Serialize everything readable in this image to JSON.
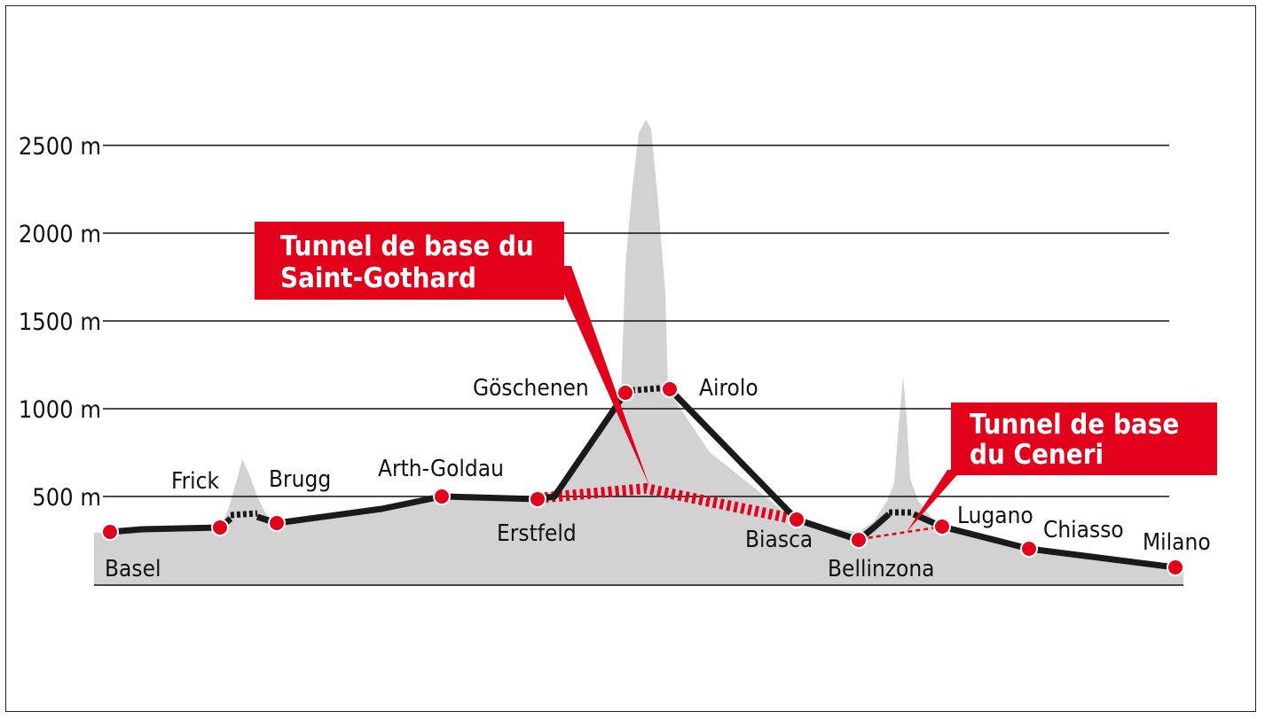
{
  "axis": {
    "unit": "m",
    "ticks": [
      {
        "value": 500,
        "label": "500 m"
      },
      {
        "value": 1000,
        "label": "1000 m"
      },
      {
        "value": 1500,
        "label": "1500 m"
      },
      {
        "value": 2000,
        "label": "2000 m"
      },
      {
        "value": 2500,
        "label": "2500 m"
      }
    ]
  },
  "stations": [
    {
      "name": "Basel",
      "altitude": 300
    },
    {
      "name": "Frick",
      "altitude": 330
    },
    {
      "name": "Brugg",
      "altitude": 340
    },
    {
      "name": "Arth-Goldau",
      "altitude": 500
    },
    {
      "name": "Erstfeld",
      "altitude": 480
    },
    {
      "name": "Göschenen",
      "altitude": 1090
    },
    {
      "name": "Airolo",
      "altitude": 1110
    },
    {
      "name": "Biasca",
      "altitude": 370
    },
    {
      "name": "Bellinzona",
      "altitude": 250
    },
    {
      "name": "Lugano",
      "altitude": 330
    },
    {
      "name": "Chiasso",
      "altitude": 200
    },
    {
      "name": "Milano",
      "altitude": 100
    }
  ],
  "callouts": {
    "gotthard": {
      "line1": "Tunnel de base du",
      "line2": "Saint-Gothard"
    },
    "ceneri": {
      "line1": "Tunnel de base",
      "line2": "du Ceneri"
    }
  },
  "colors": {
    "accent": "#e2001a",
    "terrain": "#d2d2d2",
    "line": "#1a1a1a",
    "grid": "#111111"
  }
}
